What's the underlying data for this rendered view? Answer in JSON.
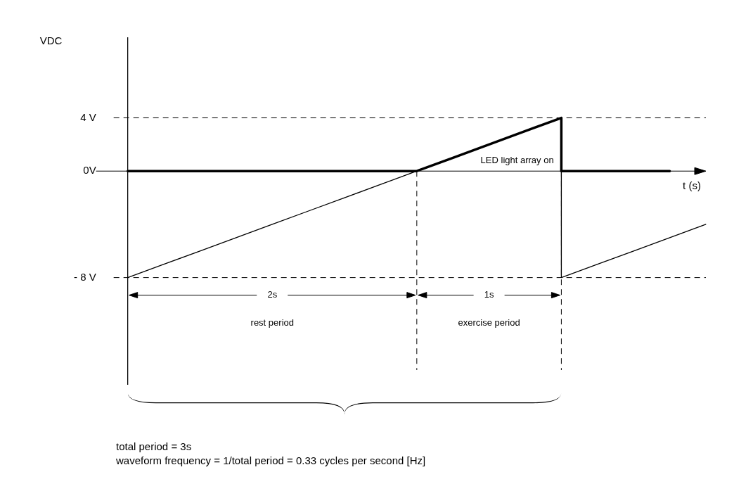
{
  "chart_data": {
    "type": "line",
    "xlabel": "t (s)",
    "ylabel": "VDC",
    "categories": [
      null,
      null,
      null,
      null,
      null,
      null,
      null,
      null,
      null,
      null,
      null,
      null,
      null,
      null,
      null,
      null,
      null
    ],
    "ylim": [
      -16,
      10
    ],
    "yticks": [
      {
        "value": 4,
        "label": "4 V"
      },
      {
        "value": 0,
        "label": "0V"
      },
      {
        "value": -8,
        "label": "- 8 V"
      }
    ],
    "tick_labels": "y",
    "grid": false,
    "legend": false,
    "marker": "none",
    "line_style": "solid",
    "series": [
      {
        "color": "#000000",
        "values": [
          -8,
          -7,
          -6,
          -5,
          -4,
          -3,
          -2,
          -1,
          0,
          1,
          2,
          3,
          4,
          null,
          null,
          null,
          null
        ]
      },
      {
        "color": "#000000",
        "values": [
          null,
          null,
          null,
          null,
          null,
          null,
          null,
          null,
          null,
          null,
          null,
          null,
          -8,
          -7,
          -6,
          -5,
          -4
        ]
      },
      {
        "color": "#000000",
        "values": [
          0,
          0,
          0,
          0,
          0,
          0,
          0,
          0,
          0,
          1,
          2,
          3,
          4,
          null,
          null,
          null,
          null
        ]
      },
      {
        "color": "#000000",
        "values": [
          null,
          null,
          null,
          null,
          null,
          null,
          null,
          null,
          null,
          null,
          null,
          null,
          0,
          0,
          0,
          0,
          null
        ]
      }
    ],
    "ref_lines": [
      {
        "axis": "y",
        "value": 4,
        "line_style": "dashed",
        "color": "#000000"
      },
      {
        "axis": "y",
        "value": -8,
        "line_style": "dashed",
        "color": "#000000"
      }
    ],
    "annotations": [
      "LED light array on",
      "2s",
      "rest period",
      "1s",
      "exercise period",
      "total period = 3s",
      "waveform frequency = 1/total period = 0.33 cycles per second [Hz]"
    ]
  }
}
